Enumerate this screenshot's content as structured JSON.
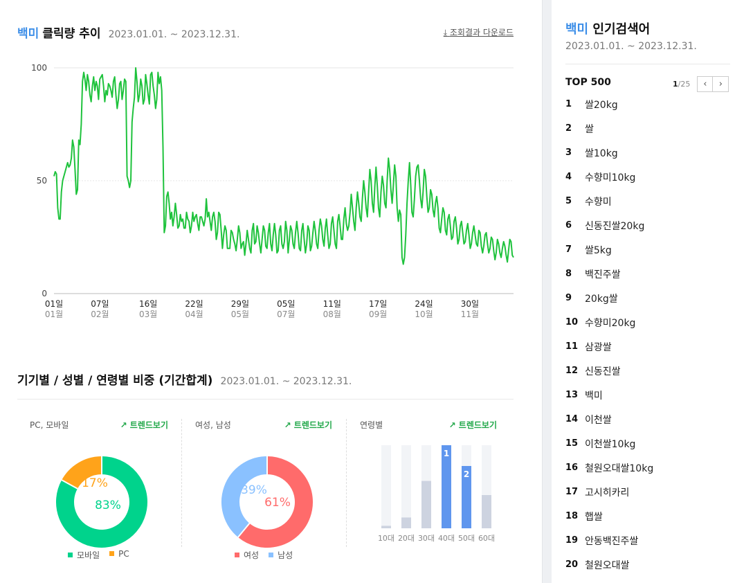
{
  "header": {
    "keyword": "백미",
    "title": "클릭량 추이",
    "date_range": "2023.01.01. ~ 2023.12.31.",
    "download_label": "조회결과 다운로드"
  },
  "chart_data": [
    {
      "type": "line",
      "ylim": [
        0,
        100
      ],
      "y_ticks": [
        "0",
        "50",
        "100"
      ],
      "x_tick_days": [
        "01일",
        "07일",
        "16일",
        "22일",
        "29일",
        "05일",
        "11일",
        "17일",
        "24일",
        "30일"
      ],
      "x_tick_months": [
        "01월",
        "02월",
        "03월",
        "04월",
        "05월",
        "07월",
        "08월",
        "09월",
        "10월",
        "11월"
      ],
      "color": "#1ec23c",
      "values": [
        52,
        54,
        53,
        38,
        33,
        33,
        45,
        50,
        52,
        54,
        56,
        58,
        56,
        57,
        60,
        68,
        65,
        55,
        44,
        46,
        68,
        66,
        75,
        94,
        98,
        95,
        90,
        97,
        94,
        88,
        85,
        92,
        96,
        90,
        94,
        92,
        86,
        95,
        96,
        97,
        92,
        85,
        90,
        88,
        93,
        92,
        90,
        87,
        94,
        96,
        88,
        82,
        86,
        93,
        94,
        86,
        90,
        95,
        94,
        52,
        50,
        47,
        50,
        76,
        82,
        87,
        100,
        94,
        85,
        88,
        95,
        92,
        84,
        86,
        97,
        93,
        88,
        84,
        97,
        98,
        92,
        88,
        82,
        86,
        98,
        93,
        96,
        90,
        65,
        27,
        30,
        43,
        45,
        40,
        33,
        36,
        30,
        34,
        40,
        35,
        29,
        30,
        35,
        32,
        33,
        29,
        29,
        36,
        33,
        32,
        27,
        30,
        36,
        32,
        34,
        35,
        31,
        28,
        34,
        34,
        32,
        30,
        33,
        42,
        34,
        36,
        32,
        28,
        34,
        36,
        32,
        24,
        27,
        36,
        35,
        28,
        20,
        26,
        30,
        28,
        20,
        20,
        20,
        28,
        27,
        24,
        22,
        19,
        24,
        30,
        27,
        20,
        22,
        23,
        17,
        22,
        28,
        24,
        20,
        18,
        28,
        31,
        22,
        23,
        30,
        27,
        22,
        18,
        24,
        30,
        28,
        21,
        20,
        27,
        31,
        22,
        19,
        26,
        31,
        26,
        18,
        19,
        28,
        30,
        22,
        20,
        23,
        32,
        28,
        18,
        24,
        30,
        28,
        22,
        20,
        27,
        32,
        27,
        20,
        19,
        28,
        31,
        24,
        18,
        22,
        30,
        28,
        19,
        21,
        27,
        32,
        28,
        22,
        20,
        28,
        33,
        30,
        24,
        21,
        29,
        33,
        26,
        20,
        22,
        31,
        34,
        28,
        22,
        20,
        32,
        35,
        30,
        24,
        24,
        33,
        38,
        31,
        28,
        30,
        36,
        44,
        38,
        32,
        28,
        38,
        45,
        40,
        34,
        32,
        42,
        50,
        45,
        38,
        34,
        45,
        55,
        50,
        40,
        36,
        47,
        56,
        48,
        38,
        34,
        45,
        52,
        48,
        40,
        38,
        50,
        60,
        55,
        46,
        40,
        48,
        57,
        52,
        38,
        32,
        37,
        35,
        16,
        13,
        16,
        26,
        40,
        50,
        58,
        48,
        36,
        34,
        42,
        52,
        56,
        57,
        50,
        42,
        38,
        45,
        55,
        52,
        43,
        36,
        38,
        46,
        44,
        37,
        34,
        40,
        43,
        38,
        29,
        27,
        33,
        38,
        36,
        28,
        26,
        33,
        35,
        30,
        24,
        25,
        32,
        34,
        29,
        22,
        24,
        30,
        32,
        27,
        22,
        23,
        28,
        31,
        26,
        20,
        22,
        27,
        30,
        26,
        22,
        21,
        28,
        27,
        21,
        18,
        21,
        26,
        27,
        22,
        18,
        20,
        25,
        24,
        19,
        15,
        18,
        24,
        22,
        18,
        16,
        20,
        23,
        21,
        17,
        14,
        19,
        24,
        23,
        17,
        16
      ]
    },
    {
      "type": "pie",
      "categories": [
        "모바일",
        "PC"
      ],
      "values": [
        83,
        17
      ],
      "colors": [
        "#00d38c",
        "#ffa31a"
      ]
    },
    {
      "type": "pie",
      "categories": [
        "여성",
        "남성"
      ],
      "values": [
        61,
        39
      ],
      "colors": [
        "#ff6b6b",
        "#8ac1ff"
      ]
    },
    {
      "type": "bar",
      "categories": [
        "10대",
        "20대",
        "30대",
        "40대",
        "50대",
        "60대"
      ],
      "values": [
        3,
        13,
        57,
        100,
        75,
        40
      ],
      "ylim": [
        0,
        100
      ],
      "rank_labels": [
        "",
        "",
        "",
        "1",
        "2",
        ""
      ],
      "colors": {
        "default": "#cdd3e0",
        "highlight": "#5f96ee",
        "track": "#f2f4f7"
      }
    }
  ],
  "ratio_section": {
    "title": "기기별 / 성별 / 연령별 비중 (기간합계)",
    "date_range": "2023.01.01. ~ 2023.12.31.",
    "trend_label": "트렌드보기",
    "device_title": "PC, 모바일",
    "gender_title": "여성, 남성",
    "age_title": "연령별",
    "device_pct": [
      "83%",
      "17%"
    ],
    "gender_pct": [
      "61%",
      "39%"
    ],
    "device_legend": [
      "모바일",
      "PC"
    ],
    "gender_legend": [
      "여성",
      "남성"
    ]
  },
  "sidebar": {
    "keyword": "백미",
    "title": "인기검색어",
    "date_range": "2023.01.01. ~ 2023.12.31.",
    "top_label": "TOP 500",
    "page_current": "1",
    "page_total": "/25",
    "prev_symbol": "‹",
    "next_symbol": "›",
    "ranks": [
      {
        "n": "1",
        "k": "쌀20kg"
      },
      {
        "n": "2",
        "k": "쌀"
      },
      {
        "n": "3",
        "k": "쌀10kg"
      },
      {
        "n": "4",
        "k": "수향미10kg"
      },
      {
        "n": "5",
        "k": "수향미"
      },
      {
        "n": "6",
        "k": "신동진쌀20kg"
      },
      {
        "n": "7",
        "k": "쌀5kg"
      },
      {
        "n": "8",
        "k": "백진주쌀"
      },
      {
        "n": "9",
        "k": "20kg쌀"
      },
      {
        "n": "10",
        "k": "수향미20kg"
      },
      {
        "n": "11",
        "k": "삼광쌀"
      },
      {
        "n": "12",
        "k": "신동진쌀"
      },
      {
        "n": "13",
        "k": "백미"
      },
      {
        "n": "14",
        "k": "이천쌀"
      },
      {
        "n": "15",
        "k": "이천쌀10kg"
      },
      {
        "n": "16",
        "k": "철원오대쌀10kg"
      },
      {
        "n": "17",
        "k": "고시히카리"
      },
      {
        "n": "18",
        "k": "햅쌀"
      },
      {
        "n": "19",
        "k": "안동백진주쌀"
      },
      {
        "n": "20",
        "k": "철원오대쌀"
      }
    ]
  }
}
